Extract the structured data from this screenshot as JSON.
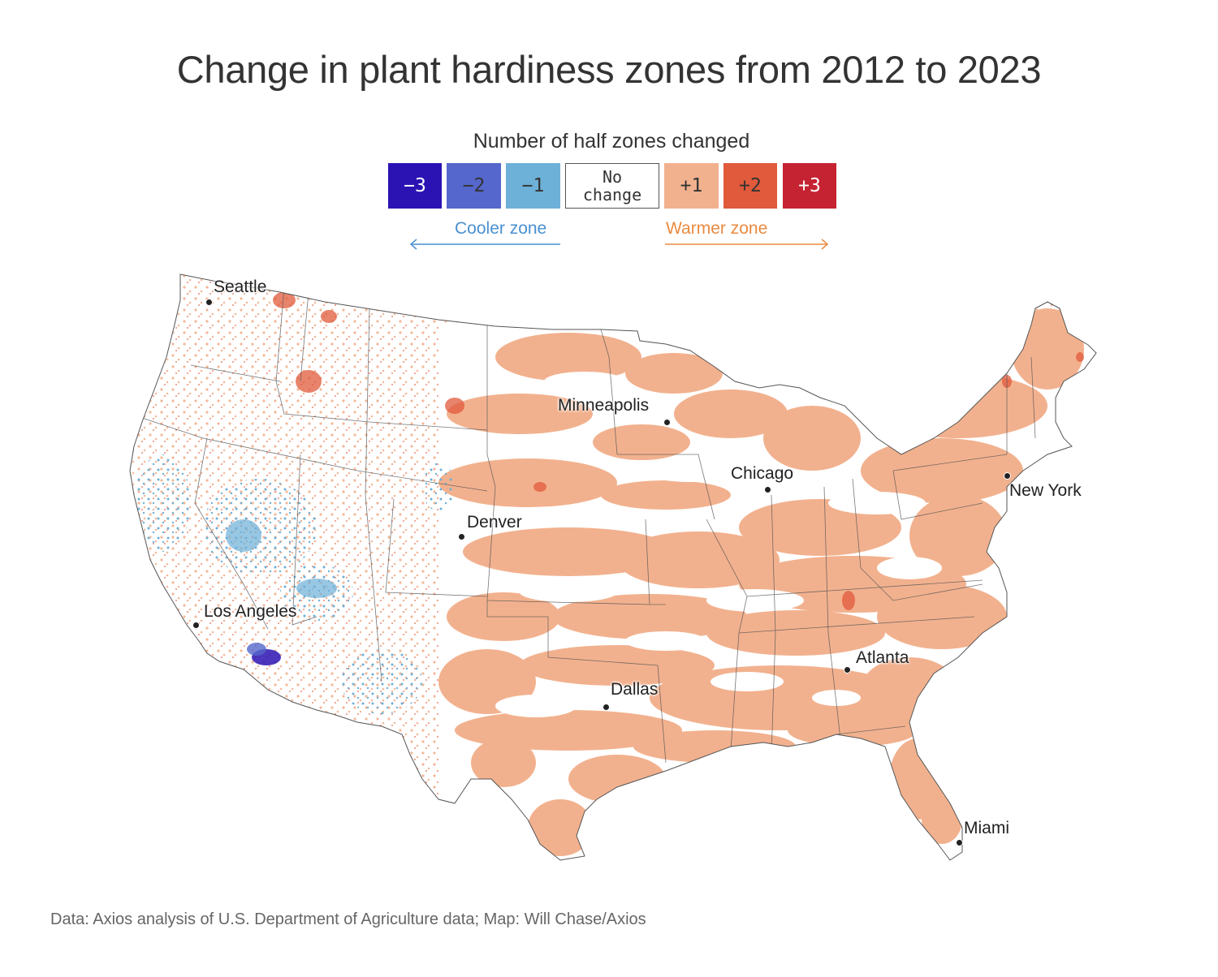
{
  "title": "Change in plant hardiness zones from 2012 to 2023",
  "legend": {
    "title": "Number of half zones changed",
    "items": [
      {
        "label": "−3",
        "color": "#2b13b3",
        "text_color": "#ffffff"
      },
      {
        "label": "−2",
        "color": "#5567cc",
        "text_color": "#333333"
      },
      {
        "label": "−1",
        "color": "#6db0d8",
        "text_color": "#333333"
      },
      {
        "label_line1": "No",
        "label_line2": "change",
        "color": "#ffffff",
        "text_color": "#333333"
      },
      {
        "label": "+1",
        "color": "#f2b18e",
        "text_color": "#333333"
      },
      {
        "label": "+2",
        "color": "#e05a3b",
        "text_color": "#333333"
      },
      {
        "label": "+3",
        "color": "#c52332",
        "text_color": "#ffffff"
      }
    ],
    "cooler_label": "Cooler zone",
    "cooler_color": "#4a90d0",
    "warmer_label": "Warmer zone",
    "warmer_color": "#ea8a40"
  },
  "cities": [
    {
      "name": "Seattle"
    },
    {
      "name": "Minneapolis"
    },
    {
      "name": "Chicago"
    },
    {
      "name": "New York"
    },
    {
      "name": "Denver"
    },
    {
      "name": "Los Angeles"
    },
    {
      "name": "Atlanta"
    },
    {
      "name": "Dallas"
    },
    {
      "name": "Miami"
    }
  ],
  "source": "Data: Axios analysis of U.S. Department of Agriculture data; Map: Will Chase/Axios"
}
